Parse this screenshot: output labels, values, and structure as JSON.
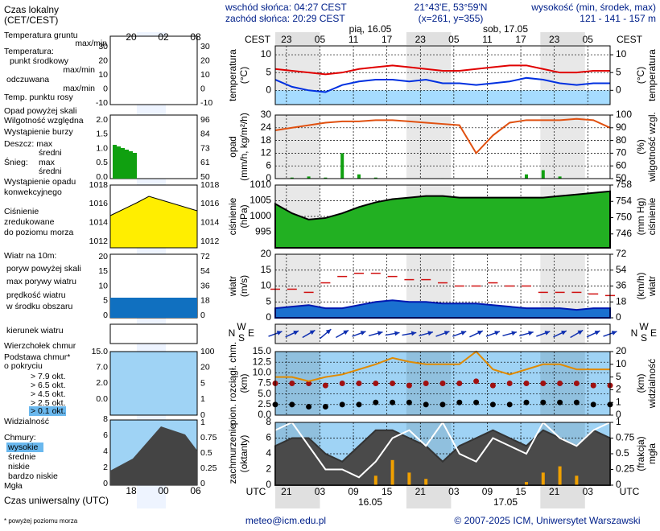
{
  "header": {
    "sunrise": "wschód słońca: 04:27 CEST",
    "sunset": "zachód słońca: 20:29 CEST",
    "coordinates": "21°43'E, 53°59'N",
    "grid_point": "(x=261, y=355)",
    "elevation_title": "wysokość (min, środek, max)",
    "elevation": "121 - 141 - 157 m"
  },
  "local_time_label": "CEST",
  "utc_label": "UTC",
  "days": [
    "pią, 16.05",
    "sob, 17.05"
  ],
  "utc_dates": [
    "16.05",
    "17.05"
  ],
  "xlim": [
    0,
    60
  ],
  "x": [
    0,
    3,
    6,
    9,
    12,
    15,
    18,
    21,
    24,
    27,
    30,
    33,
    36,
    39,
    42,
    45,
    48,
    51,
    54,
    57,
    60
  ],
  "cest_ticks": [
    {
      "value": 2,
      "label": "23"
    },
    {
      "value": 8,
      "label": "05"
    },
    {
      "value": 14,
      "label": "11"
    },
    {
      "value": 20,
      "label": "17"
    },
    {
      "value": 26,
      "label": "23"
    },
    {
      "value": 32,
      "label": "05"
    },
    {
      "value": 38,
      "label": "11"
    },
    {
      "value": 44,
      "label": "17"
    },
    {
      "value": 50,
      "label": "23"
    },
    {
      "value": 56,
      "label": "05"
    }
  ],
  "utc_ticks": [
    {
      "value": 2,
      "label": "21"
    },
    {
      "value": 8,
      "label": "03"
    },
    {
      "value": 14,
      "label": "09"
    },
    {
      "value": 20,
      "label": "15"
    },
    {
      "value": 26,
      "label": "21"
    },
    {
      "value": 32,
      "label": "03"
    },
    {
      "value": 38,
      "label": "09"
    },
    {
      "value": 44,
      "label": "15"
    },
    {
      "value": 50,
      "label": "21"
    },
    {
      "value": 56,
      "label": "03"
    }
  ],
  "panels": {
    "temperature": {
      "ylabel": [
        "temperatura",
        "(°C)"
      ],
      "y2label": [
        "(°C)",
        "temperatura"
      ],
      "ylim": [
        -4,
        12.5
      ],
      "yticks": [
        0,
        5,
        10
      ],
      "y2lim": [
        -4,
        12.5
      ],
      "y2ticks": [
        0,
        5,
        10
      ],
      "series": [
        {
          "type": "line",
          "color": "#e00000",
          "values": [
            6,
            5.5,
            5,
            4.5,
            5,
            6,
            6.5,
            7,
            6.5,
            6,
            5.5,
            5.5,
            6,
            6.5,
            7,
            7,
            6,
            5,
            5,
            5.5,
            5.5
          ]
        },
        {
          "type": "line",
          "color": "#0030e0",
          "values": [
            3,
            1,
            0,
            -0.5,
            1.5,
            2.5,
            3,
            3,
            2.5,
            3,
            2,
            2,
            1.5,
            2,
            2.5,
            3.5,
            3,
            2,
            1.5,
            2,
            2
          ]
        }
      ]
    },
    "precip": {
      "ylabel": [
        "opad",
        "(mm/h, kg/m²/h)"
      ],
      "y2label": [
        "(%)",
        "wilgotność wzgl."
      ],
      "ylim": [
        0,
        30
      ],
      "yticks": [
        0,
        6,
        12,
        18,
        24,
        30
      ],
      "y2lim": [
        50,
        100
      ],
      "y2ticks": [
        50,
        60,
        70,
        80,
        90,
        100
      ],
      "series": [
        {
          "type": "bar",
          "color": "#10a010",
          "values": [
            0,
            0.5,
            1,
            0.5,
            12,
            2,
            0.5,
            0,
            0,
            0,
            0.2,
            0,
            0,
            0,
            0,
            2,
            4,
            1,
            0,
            0,
            0
          ]
        },
        {
          "type": "line",
          "axis": "y2",
          "color": "#e05010",
          "values": [
            88,
            90,
            92,
            94,
            95,
            95,
            96,
            96,
            95,
            94,
            93,
            92,
            70,
            84,
            94,
            96,
            96,
            96,
            97,
            96,
            90
          ]
        }
      ]
    },
    "pressure": {
      "ylabel": [
        "ciśnienie",
        "(hPa)"
      ],
      "y2label": [
        "(mm Hg)",
        "ciśnienie"
      ],
      "ylim": [
        990,
        1010
      ],
      "yticks": [
        995,
        1000,
        1005,
        1010
      ],
      "y2lim": [
        742.6,
        758
      ],
      "y2ticks": [
        746,
        750,
        754,
        758
      ],
      "series": [
        {
          "type": "area",
          "color": "#22b022",
          "line_color": "#000000",
          "values": [
            1004,
            1001,
            999,
            999.5,
            1001,
            1003,
            1004.5,
            1005.5,
            1006,
            1006.5,
            1006.5,
            1006,
            1006,
            1006,
            1006,
            1006,
            1006,
            1006.5,
            1007,
            1007.5,
            1008
          ]
        }
      ]
    },
    "wind": {
      "ylabel": [
        "wiatr",
        "(m/s)"
      ],
      "y2label": [
        "(km/h)",
        "wiatr"
      ],
      "ylim": [
        0,
        20
      ],
      "yticks": [
        0,
        5,
        10,
        15,
        20
      ],
      "y2lim": [
        0,
        72
      ],
      "y2ticks": [
        0,
        18,
        36,
        54,
        72
      ],
      "series": [
        {
          "type": "area",
          "color": "#1a70d0",
          "line_color": "#0018b0",
          "values": [
            3,
            3.5,
            4,
            3,
            3,
            4,
            5,
            5.5,
            5,
            5,
            4.5,
            4.5,
            4.5,
            4,
            3.5,
            3,
            3,
            3,
            2.5,
            3,
            3
          ]
        },
        {
          "type": "dash",
          "color": "#d01010",
          "values": [
            9,
            9,
            8,
            11,
            13,
            14,
            14,
            13,
            12,
            12,
            11,
            10,
            10,
            11,
            10,
            10,
            8,
            8,
            8,
            7.5,
            7
          ]
        }
      ]
    },
    "direction": {
      "compass": [
        "N",
        "W",
        "E",
        "S"
      ],
      "series": [
        {
          "type": "arrow",
          "color": "#1030b0",
          "values": [
            250,
            245,
            240,
            230,
            240,
            250,
            255,
            260,
            260,
            255,
            250,
            250,
            245,
            250,
            255,
            255,
            250,
            245,
            240,
            245,
            250
          ]
        }
      ]
    },
    "clouds": {
      "ylabel": [
        "pion. rozciągł. chm.",
        "(km)"
      ],
      "y2label": [
        "(km)",
        "widzialność"
      ],
      "ylim": [
        0,
        15
      ],
      "yticks": [
        {
          "value": 0,
          "label": "0.0"
        },
        2.5,
        {
          "value": 5,
          "label": "5.0"
        },
        7.5,
        {
          "value": 10,
          "label": "10.0"
        },
        12.5,
        {
          "value": 15,
          "label": "15.0"
        }
      ],
      "y2ticks": [
        0,
        1,
        2,
        5,
        10,
        20
      ],
      "y2scale": "piecewise",
      "series": [
        {
          "type": "dots",
          "color": "#a01010",
          "values": [
            7.5,
            7.5,
            7.5,
            7,
            7.5,
            7.5,
            7.5,
            7.5,
            7,
            7.5,
            7.5,
            7.5,
            8,
            7,
            7.5,
            7.5,
            7.5,
            7.5,
            7.5,
            7,
            7
          ]
        },
        {
          "type": "dots",
          "color": "#000000",
          "values": [
            2.5,
            2.5,
            2,
            2,
            2.5,
            2.5,
            3,
            3,
            3,
            2.5,
            2.5,
            3,
            3,
            2.5,
            2.5,
            3,
            3,
            3,
            3,
            2.5,
            2.5
          ]
        },
        {
          "type": "line",
          "axis": "y2",
          "color": "#e08a00",
          "values": [
            5,
            5,
            4,
            5,
            6,
            8,
            10,
            15,
            12,
            10,
            10,
            10,
            20,
            8,
            6,
            8,
            10,
            10,
            8,
            8,
            8
          ]
        }
      ]
    },
    "cover": {
      "ylabel": [
        "zachmurzenie",
        "(oktanty)"
      ],
      "y2label": [
        "(frakcja)",
        "mgła"
      ],
      "ylim": [
        0,
        8
      ],
      "yticks": [
        0,
        2,
        4,
        6,
        8
      ],
      "y2lim": [
        0,
        1
      ],
      "y2ticks": [
        0,
        0.25,
        0.5,
        0.75,
        1
      ],
      "series": [
        {
          "type": "area",
          "color": "#4a4a4a",
          "line_color": "#333333",
          "values": [
            5,
            6,
            6,
            4,
            3,
            5,
            7,
            7,
            6,
            5,
            3,
            5,
            6,
            7,
            6,
            5,
            7,
            6,
            5,
            7,
            6
          ]
        },
        {
          "type": "line",
          "color": "#ffffff",
          "values": [
            7,
            8,
            5,
            2,
            2,
            1,
            3,
            6,
            7,
            5,
            8,
            4,
            3,
            6,
            5,
            4,
            8,
            6,
            5,
            7,
            8
          ]
        },
        {
          "type": "bar",
          "axis": "y2",
          "color": "#f0a000",
          "values": [
            0,
            0,
            0,
            0,
            0,
            0,
            0.15,
            0.4,
            0.2,
            0.1,
            0,
            0,
            0,
            0,
            0,
            0.05,
            0.2,
            0.3,
            0.15,
            0,
            0
          ]
        }
      ]
    }
  },
  "legend": {
    "labels": [
      "Czas lokalny",
      "(CET/CEST)",
      "Temperatura gruntu",
      "max/min",
      "Temperatura:",
      "punkt środkowy",
      "max/min",
      "odczuwana",
      "max/min",
      "Temp. punktu rosy",
      "Opad powyżej skali",
      "Wilgotność względna",
      "Wystąpienie burzy",
      "Deszcz: max",
      "średni",
      "Śnieg:",
      "max",
      "średni",
      "Wystąpienie opadu",
      "konwekcyjnego",
      "Ciśnienie",
      "zredukowane",
      "do poziomu morza",
      "Wiatr na 10m:",
      "poryw powyżej skali",
      "max porywy wiatru",
      "prędkość wiatru",
      "w środku obszaru",
      "kierunek wiatru",
      "Wierzchołek chmur",
      "Podstawa chmur*",
      "o pokryciu",
      "> 7.9 okt.",
      "> 6.5 okt.",
      "> 4.5 okt.",
      "> 2.5 okt.",
      "> 0.1 okt.",
      "Widzialność",
      "Chmury:",
      "wysokie",
      "średnie",
      "niskie",
      "bardzo niskie",
      "Mgła",
      "Czas uniwersalny (UTC)",
      "* powyżej poziomu morza"
    ],
    "hours_local": [
      "20",
      "02",
      "08"
    ],
    "hours_utc": [
      "18",
      "00",
      "06"
    ],
    "minis": [
      {
        "left": [
          "30",
          "20",
          "10",
          "0",
          "-10"
        ],
        "right": [
          "30",
          "20",
          "10",
          "0",
          "-10"
        ]
      },
      {
        "left": [
          "2.0",
          "1.5",
          "1.0",
          "0.5",
          "0.0"
        ],
        "right": [
          "96",
          "84",
          "73",
          "61",
          "50"
        ]
      },
      {
        "left": [
          "1018",
          "1016",
          "1014",
          "1012"
        ],
        "right": [
          "1018",
          "1016",
          "1014",
          "1012"
        ]
      },
      {
        "left": [
          "20",
          "15",
          "10",
          "5",
          "0"
        ],
        "right": [
          "72",
          "54",
          "36",
          "18",
          "0"
        ]
      },
      {
        "left": [
          "15.0",
          "7.0",
          "2.0",
          "0.0"
        ],
        "right": [
          "100",
          "20",
          "5",
          "1",
          "0"
        ]
      },
      {
        "left": [
          "8",
          "6",
          "4",
          "2",
          "0"
        ],
        "right": [
          "1",
          "0.75",
          "0.5",
          "0.25",
          "0"
        ]
      }
    ]
  },
  "footer": {
    "contact": "meteo@icm.edu.pl",
    "copyright": "© 2007-2025 ICM, Uniwersytet Warszawski"
  }
}
